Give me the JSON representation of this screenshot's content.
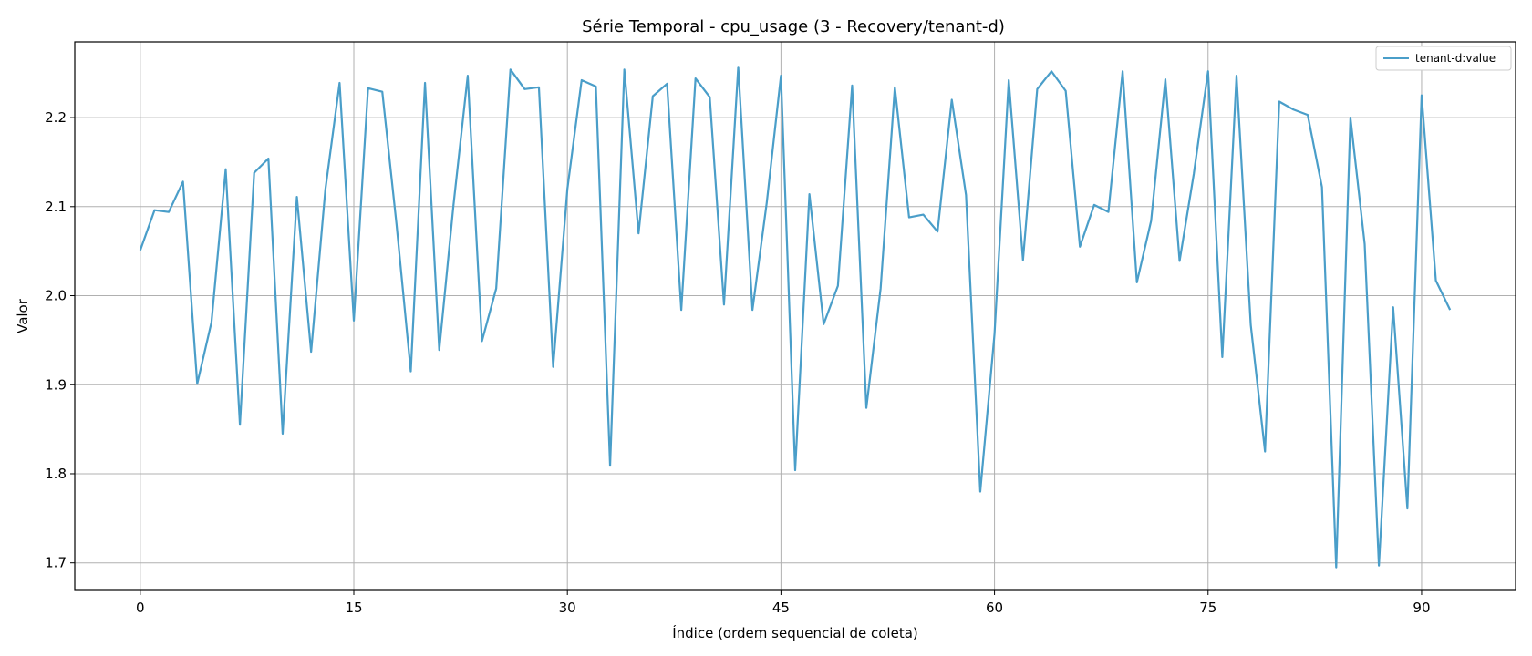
{
  "chart_data": {
    "type": "line",
    "title": "Série Temporal - cpu_usage (3 - Recovery/tenant-d)",
    "xlabel": "Índice (ordem sequencial de coleta)",
    "ylabel": "Valor",
    "xlim": [
      -4.6,
      96.6
    ],
    "ylim": [
      1.669,
      2.285
    ],
    "xticks": [
      0,
      15,
      30,
      45,
      60,
      75,
      90
    ],
    "yticks": [
      1.7,
      1.8,
      1.9,
      2.0,
      2.1,
      2.2
    ],
    "xtick_labels": [
      "0",
      "15",
      "30",
      "45",
      "60",
      "75",
      "90"
    ],
    "ytick_labels": [
      "1.7",
      "1.8",
      "1.9",
      "2.0",
      "2.1",
      "2.2"
    ],
    "grid": true,
    "legend_position": "top-right",
    "series": [
      {
        "name": "tenant-d:value",
        "color": "#4a9ec9",
        "x": [
          0,
          1,
          2,
          3,
          4,
          5,
          6,
          7,
          8,
          9,
          10,
          11,
          12,
          13,
          14,
          15,
          16,
          17,
          18,
          19,
          20,
          21,
          22,
          23,
          24,
          25,
          26,
          27,
          28,
          29,
          30,
          31,
          32,
          33,
          34,
          35,
          36,
          37,
          38,
          39,
          40,
          41,
          42,
          43,
          44,
          45,
          46,
          47,
          48,
          49,
          50,
          51,
          52,
          53,
          54,
          55,
          56,
          57,
          58,
          59,
          60,
          61,
          62,
          63,
          64,
          65,
          66,
          67,
          68,
          69,
          70,
          71,
          72,
          73,
          74,
          75,
          76,
          77,
          78,
          79,
          80,
          81,
          82,
          83,
          84,
          85,
          86,
          87,
          88,
          89,
          90,
          91,
          92
        ],
        "values": [
          2.051,
          2.096,
          2.094,
          2.128,
          1.901,
          1.97,
          2.142,
          1.855,
          2.138,
          2.154,
          1.845,
          2.111,
          1.937,
          2.119,
          2.239,
          1.972,
          2.233,
          2.229,
          2.08,
          1.915,
          2.239,
          1.939,
          2.102,
          2.247,
          1.949,
          2.008,
          2.254,
          2.232,
          2.234,
          1.92,
          2.12,
          2.242,
          2.235,
          1.809,
          2.254,
          2.07,
          2.224,
          2.238,
          1.984,
          2.244,
          2.223,
          1.99,
          2.257,
          1.984,
          2.104,
          2.247,
          1.804,
          2.114,
          1.968,
          2.011,
          2.236,
          1.874,
          2.008,
          2.234,
          2.088,
          2.091,
          2.072,
          2.22,
          2.113,
          1.78,
          1.957,
          2.242,
          2.04,
          2.232,
          2.252,
          2.23,
          2.055,
          2.102,
          2.094,
          2.252,
          2.015,
          2.084,
          2.243,
          2.039,
          2.137,
          2.252,
          1.931,
          2.247,
          1.967,
          1.825,
          2.218,
          2.209,
          2.203,
          2.122,
          1.695,
          2.2,
          2.058,
          1.697,
          1.987,
          1.761,
          2.225,
          2.017,
          1.984
        ]
      }
    ]
  }
}
